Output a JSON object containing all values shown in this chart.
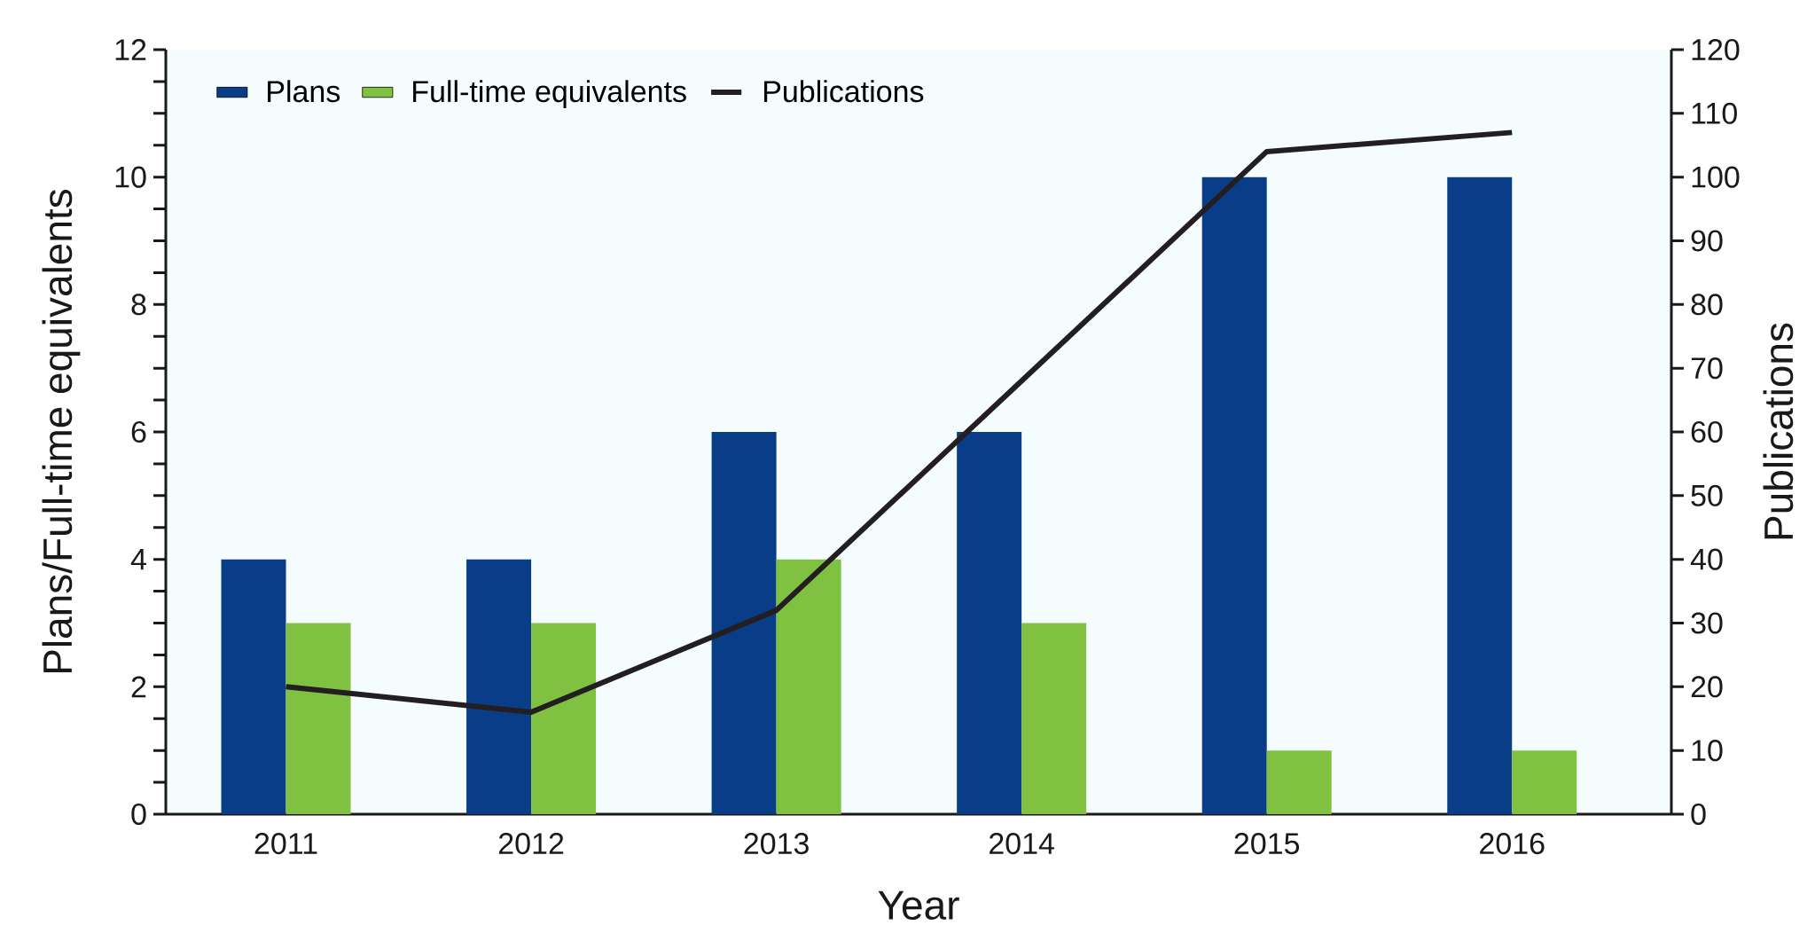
{
  "chart_data": {
    "type": "bar",
    "xlabel": "Year",
    "ylabel": "Plans/Full-time equivalents",
    "y2label": "Publications",
    "categories": [
      "2011",
      "2012",
      "2013",
      "2014",
      "2015",
      "2016"
    ],
    "series": [
      {
        "name": "Plans",
        "color": "#0a3d87",
        "values": [
          4,
          4,
          6,
          6,
          10,
          10
        ]
      },
      {
        "name": "Full-time equivalents",
        "color": "#80c142",
        "values": [
          3,
          3,
          4,
          3,
          1,
          1
        ]
      },
      {
        "name": "Publications",
        "type": "line",
        "axis": "y2",
        "color": "#231f20",
        "values": [
          20,
          16,
          32,
          68,
          104,
          107
        ]
      }
    ],
    "ylim": [
      0,
      12
    ],
    "yticks": [
      0,
      {
        "value": 0.5,
        "label": null
      },
      {
        "value": 1,
        "label": null
      },
      {
        "value": 1.5,
        "label": null
      },
      2,
      {
        "value": 2.5,
        "label": null
      },
      {
        "value": 3,
        "label": null
      },
      {
        "value": 3.5,
        "label": null
      },
      4,
      {
        "value": 4.5,
        "label": null
      },
      {
        "value": 5,
        "label": null
      },
      {
        "value": 5.5,
        "label": null
      },
      6,
      {
        "value": 6.5,
        "label": null
      },
      {
        "value": 7,
        "label": null
      },
      {
        "value": 7.5,
        "label": null
      },
      8,
      {
        "value": 8.5,
        "label": null
      },
      {
        "value": 9,
        "label": null
      },
      {
        "value": 9.5,
        "label": null
      },
      10,
      {
        "value": 10.5,
        "label": null
      },
      {
        "value": 11,
        "label": null
      },
      {
        "value": 11.5,
        "label": null
      },
      12
    ],
    "y2lim": [
      0,
      120
    ],
    "y2ticks": [
      0,
      10,
      20,
      30,
      40,
      50,
      60,
      70,
      80,
      90,
      100,
      110,
      120
    ],
    "legend": "top left",
    "grid": false,
    "marker": "none",
    "line_style": "solid"
  }
}
